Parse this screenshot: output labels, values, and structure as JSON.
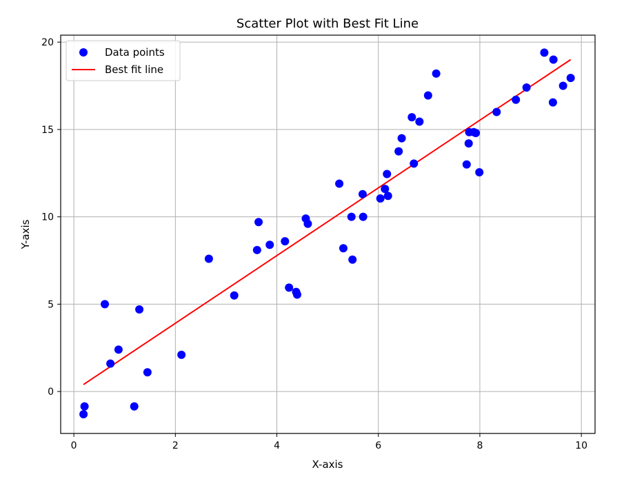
{
  "chart_data": {
    "type": "scatter",
    "title": "Scatter Plot with Best Fit Line",
    "xlabel": "X-axis",
    "ylabel": "Y-axis",
    "xlim": [
      -0.26,
      10.27
    ],
    "ylim": [
      -2.4,
      20.4
    ],
    "xticks": [
      0,
      2,
      4,
      6,
      8,
      10
    ],
    "yticks": [
      0,
      5,
      10,
      15,
      20
    ],
    "xtick_labels": [
      "0",
      "2",
      "4",
      "6",
      "8",
      "10"
    ],
    "ytick_labels": [
      "0",
      "5",
      "10",
      "15",
      "20"
    ],
    "grid": true,
    "legend_position": "top-left",
    "colors": {
      "points": "#0000ff",
      "line": "#ff0000",
      "grid": "#b0b0b0"
    },
    "series": [
      {
        "name": "Data points",
        "kind": "scatter",
        "x": [
          0.19,
          0.21,
          0.61,
          0.72,
          0.88,
          1.19,
          1.29,
          1.45,
          2.12,
          2.66,
          3.16,
          3.61,
          3.64,
          3.86,
          4.16,
          4.24,
          4.38,
          4.4,
          4.57,
          4.61,
          5.23,
          5.31,
          5.47,
          5.49,
          5.69,
          5.7,
          6.04,
          6.13,
          6.17,
          6.19,
          6.4,
          6.46,
          6.66,
          6.7,
          6.81,
          6.98,
          7.14,
          7.74,
          7.78,
          7.79,
          7.88,
          7.92,
          7.99,
          8.33,
          8.71,
          8.92,
          9.27,
          9.44,
          9.45,
          9.64,
          9.79
        ],
        "y": [
          -1.3,
          -0.85,
          5.0,
          1.6,
          2.4,
          -0.85,
          4.7,
          1.1,
          2.1,
          7.6,
          5.5,
          8.1,
          9.7,
          8.4,
          8.6,
          5.95,
          5.7,
          5.55,
          9.9,
          9.6,
          11.9,
          8.2,
          10.0,
          7.55,
          11.3,
          10.0,
          11.05,
          11.6,
          12.45,
          11.2,
          13.75,
          14.5,
          15.7,
          13.05,
          15.45,
          16.95,
          18.2,
          13.0,
          14.2,
          14.85,
          14.85,
          14.8,
          12.55,
          16.0,
          16.7,
          17.4,
          19.4,
          16.55,
          19.0,
          17.5,
          17.95
        ]
      },
      {
        "name": "Best fit line",
        "kind": "line",
        "x": [
          0.19,
          9.79
        ],
        "y": [
          0.4,
          19.0
        ]
      }
    ]
  }
}
